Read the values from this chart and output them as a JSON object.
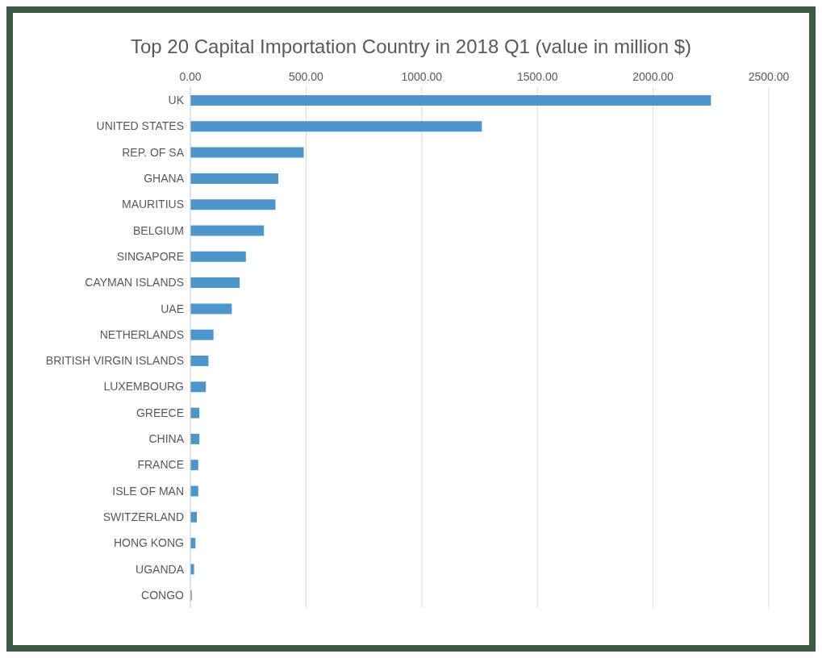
{
  "chart_data": {
    "type": "bar",
    "orientation": "horizontal",
    "title": "Top 20 Capital Importation Country in 2018 Q1 (value in million $)",
    "categories": [
      "UK",
      "UNITED STATES",
      "REP. OF SA",
      "GHANA",
      "MAURITIUS",
      "BELGIUM",
      "SINGAPORE",
      "CAYMAN ISLANDS",
      "UAE",
      "NETHERLANDS",
      "BRITISH VIRGIN ISLANDS",
      "LUXEMBOURG",
      "GREECE",
      "CHINA",
      "FRANCE",
      "ISLE OF MAN",
      "SWITZERLAND",
      "HONG KONG",
      "UGANDA",
      "CONGO"
    ],
    "values": [
      2250,
      1260,
      490,
      380,
      368,
      318,
      240,
      213,
      179,
      100,
      78,
      67,
      39,
      39,
      34,
      34,
      28,
      22,
      16,
      6
    ],
    "color": "#4e95cb",
    "xlim": [
      0,
      2500
    ],
    "xticks": [
      {
        "value": 0,
        "label": "0.00"
      },
      {
        "value": 500,
        "label": "500.00"
      },
      {
        "value": 1000,
        "label": "1000.00"
      },
      {
        "value": 1500,
        "label": "1500.00"
      },
      {
        "value": 2000,
        "label": "2000.00"
      },
      {
        "value": 2500,
        "label": "2500.00"
      }
    ],
    "grid": "x",
    "legend": false
  }
}
